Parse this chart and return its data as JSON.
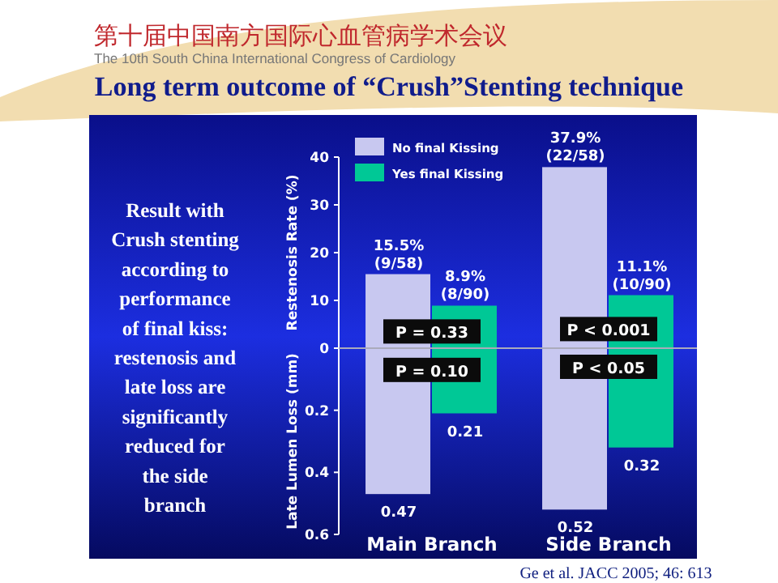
{
  "chart_data": [
    {
      "type": "other",
      "title": "Long term outcome of “Crush”Stenting technique",
      "annotations": [
        "第十届中国南方国际心血管病学术会议",
        "The 10th South China International Congress of Cardiology",
        "Result with\nCrush stenting\naccording to\nperformance\nof final kiss:\nrestenosis and\nlate loss are\nsignificantly\nreduced for\nthe side\nbranch",
        "Ge et al. JACC 2005; 46: 613"
      ]
    },
    {
      "type": "bar",
      "ylabel": "Restenosis Rate (%)",
      "categories": [
        "Main Branch",
        "Side Branch"
      ],
      "series": [
        {
          "name": "No final Kissing",
          "color": "#c8c8f0",
          "values": [
            15.5,
            37.9
          ],
          "value_labels": [
            "15.5% (9/58)",
            "37.9% (22/58)"
          ]
        },
        {
          "name": "Yes final Kissing",
          "color": "#00c896",
          "values": [
            8.9,
            11.1
          ],
          "value_labels": [
            "8.9% (8/90)",
            "11.1% (10/90)"
          ]
        }
      ],
      "ylim": [
        0,
        40
      ],
      "yticks": [
        0,
        10,
        20,
        30,
        40
      ],
      "tick_labels": "y",
      "legend": "top left",
      "annotations": [
        {
          "text": "P = 0.33",
          "x": "Main Branch",
          "y": 3.5
        },
        {
          "text": "P < 0.001",
          "x": "Side Branch",
          "y": 4
        }
      ]
    },
    {
      "type": "bar",
      "ylabel": "Late Lumen Loss (mm)",
      "categories": [
        "Main Branch",
        "Side Branch"
      ],
      "series": [
        {
          "color": "#c8c8f0",
          "values": [
            0.47,
            0.52
          ]
        },
        {
          "color": "#00c896",
          "values": [
            0.21,
            0.32
          ]
        }
      ],
      "ylim": [
        0.6,
        0
      ],
      "yticks": [
        0.2,
        0.4,
        0.6
      ],
      "data_labels": true,
      "annotations": [
        {
          "text": "P = 0.10",
          "x": "Main Branch",
          "y": 0.07
        },
        {
          "text": "P < 0.05",
          "x": "Side Branch",
          "y": 0.06
        }
      ]
    }
  ]
}
